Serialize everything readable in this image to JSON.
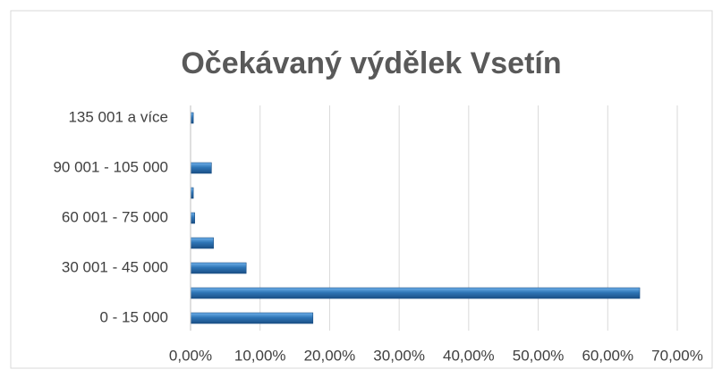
{
  "chart_data": {
    "type": "bar",
    "orientation": "horizontal",
    "title": "Očekávaný výdělek Vsetín",
    "categories": [
      "0 - 15 000",
      null,
      "30 001 - 45 000",
      null,
      "60 001 - 75 000",
      null,
      "90 001 - 105 000",
      null,
      "135 001 a více"
    ],
    "values": [
      17.6,
      64.6,
      8.0,
      3.3,
      0.6,
      0.4,
      3.0,
      0,
      0.4
    ],
    "color": "#2e75b6",
    "xlim": [
      0,
      70
    ],
    "xticks": [
      {
        "value": 0,
        "label": "0,00%"
      },
      {
        "value": 10,
        "label": "10,00%"
      },
      {
        "value": 20,
        "label": "20,00%"
      },
      {
        "value": 30,
        "label": "30,00%"
      },
      {
        "value": 40,
        "label": "40,00%"
      },
      {
        "value": 50,
        "label": "50,00%"
      },
      {
        "value": 60,
        "label": "60,00%"
      },
      {
        "value": 70,
        "label": "70,00%"
      }
    ],
    "grid": true
  }
}
